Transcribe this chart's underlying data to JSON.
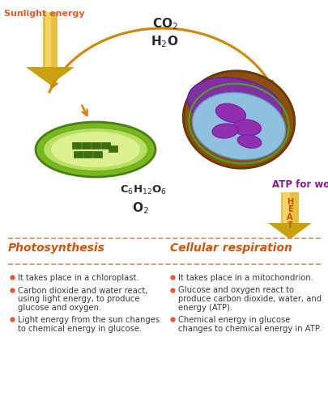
{
  "title_left": "Photosynthesis",
  "title_right": "Cellular respiration",
  "sunlight_label": "Sunlight energy",
  "atp_label": "ATP for work",
  "heat_label": "HEAT",
  "bullet_color": "#e05a2b",
  "arrow_color": "#d4860a",
  "sunlight_color": "#e05a2b",
  "atp_color": "#8b1a8b",
  "title_color": "#d4530a",
  "divider_color": "#e8825a",
  "text_color": "#3a3a3a",
  "bg_color": "#ffffff",
  "heat_text_color": "#c05010",
  "chemical_color": "#2a2a2a",
  "photo_bullets": [
    "It takes place in a chloroplast.",
    "Carbon dioxide and water react,\nusing light energy, to produce\nglucose and oxygen.",
    "Light energy from the sun changes\nto chemical energy in glucose."
  ],
  "resp_bullets": [
    "It takes place in a mitochondrion.",
    "Glucose and oxygen react to\nproduce carbon dioxide, water, and\nenergy (ATP).",
    "Chemical energy in glucose\nchanges to chemical energy in ATP."
  ]
}
